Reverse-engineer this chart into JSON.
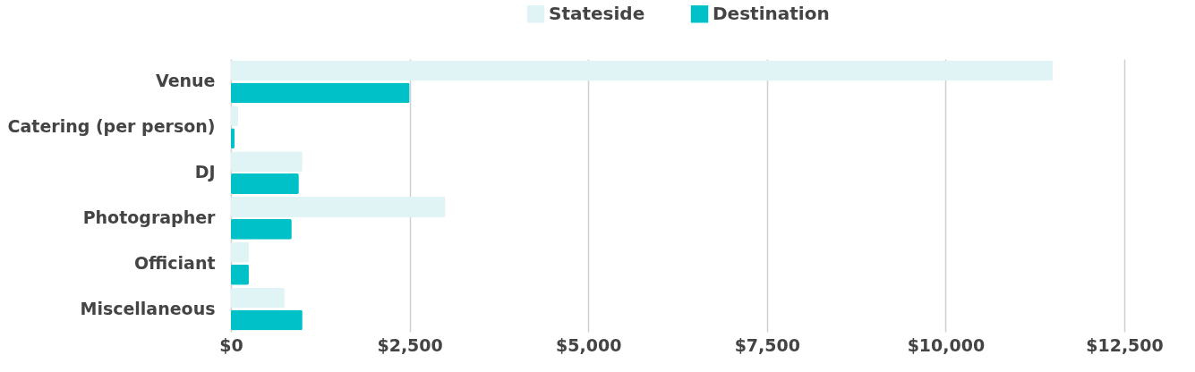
{
  "chart_data": {
    "type": "bar",
    "orientation": "horizontal",
    "categories": [
      "Venue",
      "Catering (per person)",
      "DJ",
      "Photographer",
      "Officiant",
      "Miscellaneous"
    ],
    "series": [
      {
        "name": "Stateside",
        "color": "#e0f4f5",
        "values": [
          11500,
          100,
          1000,
          3000,
          250,
          750
        ]
      },
      {
        "name": "Destination",
        "color": "#00c0c8",
        "values": [
          2500,
          50,
          950,
          850,
          250,
          1000
        ]
      }
    ],
    "xlim": [
      0,
      12500
    ],
    "xticks": [
      {
        "value": 0,
        "label": "$0"
      },
      {
        "value": 2500,
        "label": "$2,500"
      },
      {
        "value": 5000,
        "label": "$5,000"
      },
      {
        "value": 7500,
        "label": "$7,500"
      },
      {
        "value": 10000,
        "label": "$10,000"
      },
      {
        "value": 12500,
        "label": "$12,500"
      }
    ],
    "grid": "x",
    "legend": "top"
  }
}
